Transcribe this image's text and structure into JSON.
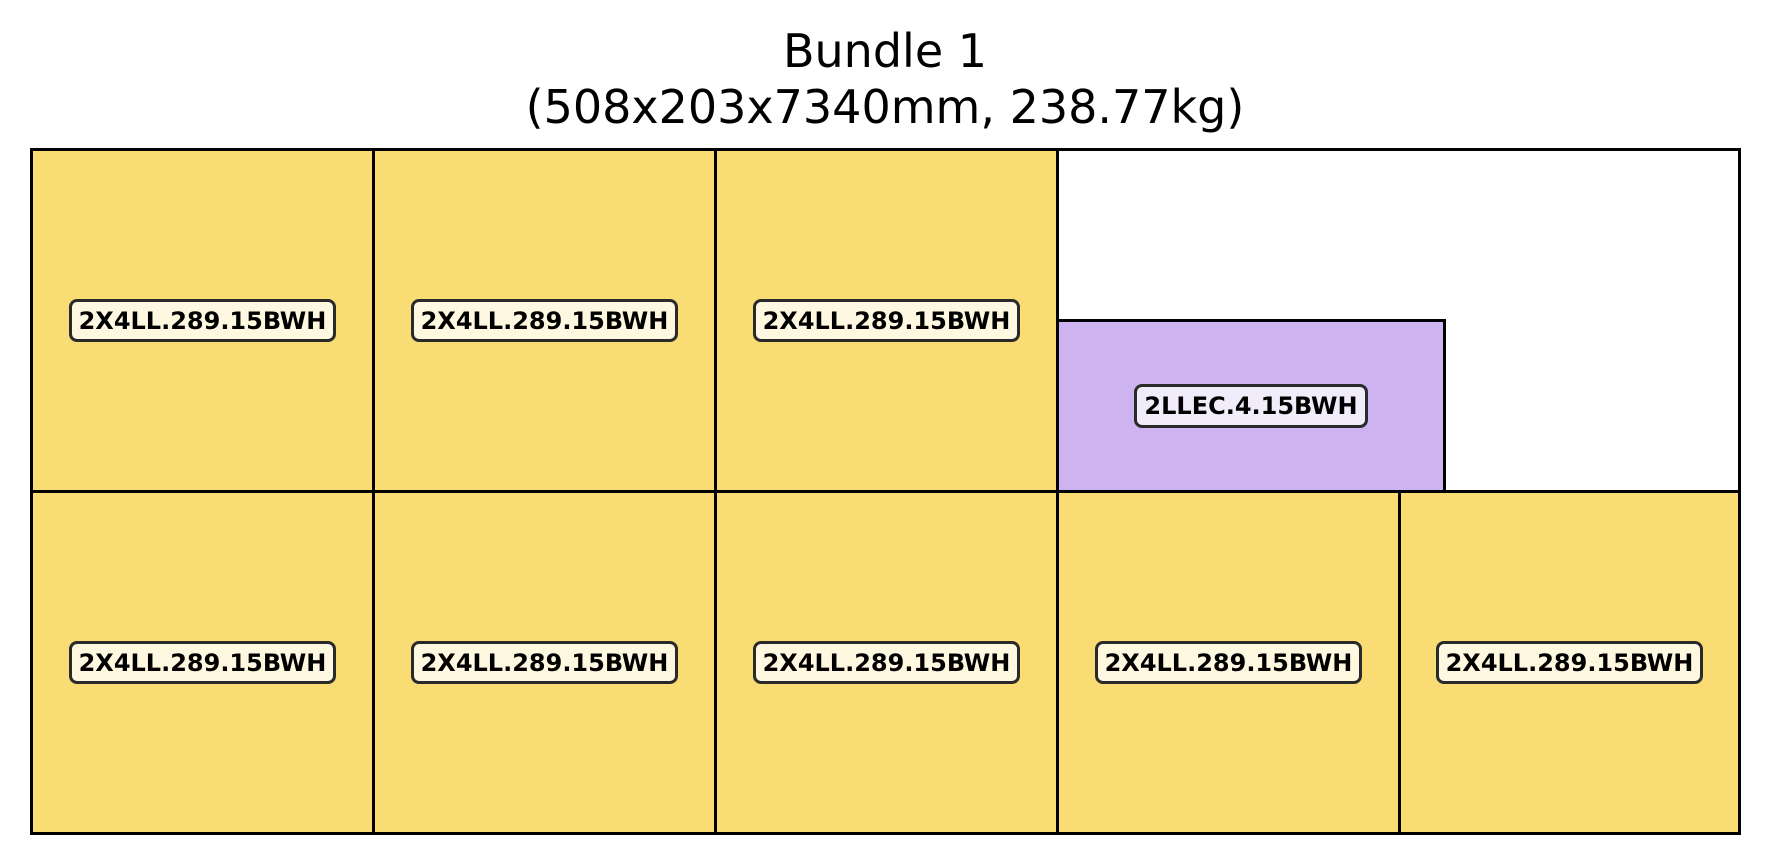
{
  "title": {
    "line1": "Bundle 1",
    "line2": "(508x203x7340mm, 238.77kg)"
  },
  "colors": {
    "lumber_fill": "#fadc74",
    "lumber_label_bg": "#fff8e0",
    "ledger_fill": "#cdb3f0",
    "ledger_label_bg": "#f0ecfa",
    "outline": "#000000"
  },
  "pieces": [
    {
      "label": "2X4LL.289.15BWH",
      "row": "top",
      "type": "lumber"
    },
    {
      "label": "2X4LL.289.15BWH",
      "row": "top",
      "type": "lumber"
    },
    {
      "label": "2X4LL.289.15BWH",
      "row": "top",
      "type": "lumber"
    },
    {
      "label": "2LLEC.4.15BWH",
      "row": "top",
      "type": "ledger"
    },
    {
      "label": "2X4LL.289.15BWH",
      "row": "bottom",
      "type": "lumber"
    },
    {
      "label": "2X4LL.289.15BWH",
      "row": "bottom",
      "type": "lumber"
    },
    {
      "label": "2X4LL.289.15BWH",
      "row": "bottom",
      "type": "lumber"
    },
    {
      "label": "2X4LL.289.15BWH",
      "row": "bottom",
      "type": "lumber"
    },
    {
      "label": "2X4LL.289.15BWH",
      "row": "bottom",
      "type": "lumber"
    }
  ]
}
